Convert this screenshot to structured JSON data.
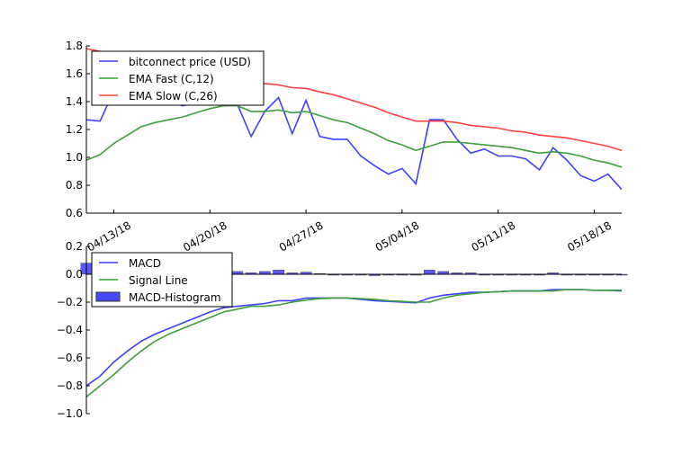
{
  "chart_data": [
    {
      "type": "line",
      "title": "",
      "xlabel": "",
      "ylabel": "",
      "ylim": [
        0.6,
        1.8
      ],
      "yticks": [
        "0.6",
        "0.8",
        "1.0",
        "1.2",
        "1.4",
        "1.6",
        "1.8"
      ],
      "xticks": [
        "04/13/18",
        "04/20/18",
        "04/27/18",
        "05/04/18",
        "05/11/18",
        "05/18/18"
      ],
      "x_start": "04/11/18",
      "x_end": "05/20/18",
      "grid": false,
      "legend_position": "top-left",
      "series": [
        {
          "name": "bitconnect price (USD)",
          "color": "#4040ff",
          "values": [
            1.27,
            1.26,
            1.48,
            1.52,
            1.47,
            1.44,
            1.4,
            1.37,
            1.39,
            1.41,
            1.37,
            1.38,
            1.15,
            1.33,
            1.43,
            1.17,
            1.41,
            1.15,
            1.13,
            1.13,
            1.01,
            0.94,
            0.88,
            0.92,
            0.81,
            1.27,
            1.27,
            1.13,
            1.03,
            1.06,
            1.01,
            1.01,
            0.99,
            0.91,
            1.07,
            0.98,
            0.87,
            0.83,
            0.88,
            0.77
          ]
        },
        {
          "name": "EMA Fast (C,12)",
          "color": "#3ca03c",
          "values": [
            0.98,
            1.02,
            1.1,
            1.16,
            1.22,
            1.25,
            1.27,
            1.29,
            1.32,
            1.35,
            1.37,
            1.37,
            1.33,
            1.33,
            1.34,
            1.32,
            1.33,
            1.3,
            1.27,
            1.25,
            1.21,
            1.17,
            1.12,
            1.09,
            1.05,
            1.08,
            1.11,
            1.11,
            1.1,
            1.09,
            1.08,
            1.07,
            1.05,
            1.03,
            1.04,
            1.03,
            1.01,
            0.98,
            0.96,
            0.93
          ]
        },
        {
          "name": "EMA Slow (C,26)",
          "color": "#ff4040",
          "values": [
            1.78,
            1.76,
            1.74,
            1.72,
            1.7,
            1.67,
            1.65,
            1.63,
            1.61,
            1.59,
            1.57,
            1.55,
            1.54,
            1.53,
            1.52,
            1.5,
            1.495,
            1.47,
            1.45,
            1.42,
            1.39,
            1.36,
            1.32,
            1.29,
            1.26,
            1.26,
            1.26,
            1.25,
            1.23,
            1.22,
            1.21,
            1.19,
            1.18,
            1.16,
            1.15,
            1.14,
            1.12,
            1.1,
            1.08,
            1.05
          ]
        }
      ]
    },
    {
      "type": "line",
      "title": "",
      "xlabel": "",
      "ylabel": "",
      "ylim": [
        -1.0,
        0.2
      ],
      "yticks": [
        "−1.0",
        "−0.8",
        "−0.6",
        "−0.4",
        "−0.2",
        "0.0",
        "0.2"
      ],
      "grid": false,
      "legend_position": "top-left",
      "series": [
        {
          "name": "MACD",
          "color": "#4040ff",
          "values": [
            -0.8,
            -0.73,
            -0.63,
            -0.55,
            -0.48,
            -0.43,
            -0.39,
            -0.35,
            -0.31,
            -0.27,
            -0.24,
            -0.23,
            -0.22,
            -0.21,
            -0.19,
            -0.19,
            -0.17,
            -0.17,
            -0.17,
            -0.17,
            -0.18,
            -0.19,
            -0.195,
            -0.2,
            -0.205,
            -0.17,
            -0.15,
            -0.14,
            -0.13,
            -0.13,
            -0.125,
            -0.12,
            -0.12,
            -0.12,
            -0.11,
            -0.11,
            -0.11,
            -0.115,
            -0.115,
            -0.12
          ]
        },
        {
          "name": "Signal Line",
          "color": "#3ca03c",
          "values": [
            -0.88,
            -0.8,
            -0.72,
            -0.63,
            -0.55,
            -0.48,
            -0.43,
            -0.39,
            -0.35,
            -0.31,
            -0.27,
            -0.25,
            -0.23,
            -0.23,
            -0.22,
            -0.2,
            -0.185,
            -0.175,
            -0.17,
            -0.17,
            -0.175,
            -0.18,
            -0.19,
            -0.195,
            -0.2,
            -0.2,
            -0.17,
            -0.15,
            -0.14,
            -0.13,
            -0.125,
            -0.12,
            -0.12,
            -0.12,
            -0.12,
            -0.11,
            -0.11,
            -0.115,
            -0.115,
            -0.115
          ]
        },
        {
          "name": "MACD-Histogram",
          "color": "#4848ff",
          "kind": "bar",
          "values": [
            0.08,
            0.07,
            0.09,
            0.08,
            0.07,
            0.05,
            0.04,
            0.04,
            0.04,
            0.04,
            0.03,
            0.02,
            0.01,
            0.02,
            0.03,
            0.01,
            0.015,
            0.005,
            0,
            0,
            -0.005,
            -0.01,
            -0.005,
            -0.005,
            -0.005,
            0.03,
            0.02,
            0.01,
            0.01,
            0,
            0,
            0,
            0,
            0,
            0.01,
            0,
            0,
            0,
            0,
            -0.005
          ]
        }
      ]
    }
  ]
}
